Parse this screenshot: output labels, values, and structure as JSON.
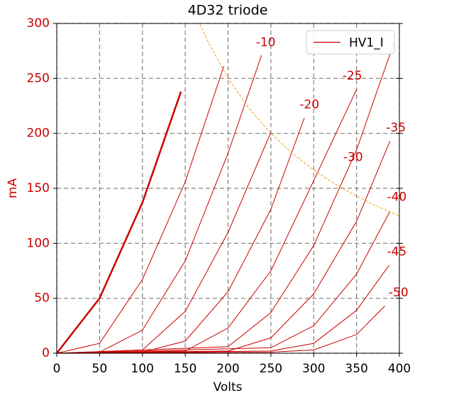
{
  "chart_data": {
    "type": "line",
    "title": "4D32 triode",
    "xlabel": "Volts",
    "ylabel": "mA",
    "xlim": [
      0,
      400
    ],
    "ylim": [
      0,
      300
    ],
    "xticks": [
      0,
      50,
      100,
      150,
      200,
      250,
      300,
      350,
      400
    ],
    "yticks": [
      0,
      50,
      100,
      150,
      200,
      250,
      300
    ],
    "grid": true,
    "ylabel_color": "#cc0000",
    "legend": {
      "label": "HV1_I",
      "color": "#cc0000",
      "location": "upper right"
    },
    "series": [
      {
        "color": "#cc0000",
        "linewidth": 2.5,
        "x": [
          0,
          50,
          100,
          145
        ],
        "values": [
          0,
          50,
          137,
          238
        ]
      },
      {
        "color": "#cc0000",
        "linewidth": 1,
        "x": [
          0,
          50,
          100,
          150,
          195
        ],
        "values": [
          0,
          9,
          67,
          156,
          261
        ]
      },
      {
        "color": "#cc0000",
        "linewidth": 1,
        "x": [
          0,
          50,
          100,
          150,
          200,
          239
        ],
        "values": [
          0,
          1,
          21,
          84,
          182,
          271
        ]
      },
      {
        "color": "#cc0000",
        "linewidth": 1,
        "x": [
          0,
          100,
          150,
          200,
          250
        ],
        "values": [
          0,
          3,
          38,
          110,
          201
        ]
      },
      {
        "color": "#cc0000",
        "linewidth": 1,
        "x": [
          0,
          100,
          150,
          200,
          250,
          289
        ],
        "values": [
          0,
          1,
          11,
          56,
          131,
          214
        ]
      },
      {
        "color": "#cc0000",
        "linewidth": 1,
        "x": [
          0,
          150,
          200,
          250,
          300,
          350
        ],
        "values": [
          0,
          2,
          23,
          75,
          157,
          240
        ]
      },
      {
        "color": "#cc0000",
        "linewidth": 1,
        "x": [
          0,
          200,
          250,
          300,
          350,
          393
        ],
        "values": [
          0,
          6,
          37,
          98,
          185,
          281
        ]
      },
      {
        "color": "#cc0000",
        "linewidth": 1,
        "x": [
          0,
          200,
          250,
          300,
          350,
          389
        ],
        "values": [
          0,
          2,
          14,
          54,
          120,
          193
        ]
      },
      {
        "color": "#cc0000",
        "linewidth": 1,
        "x": [
          0,
          250,
          300,
          350,
          389
        ],
        "values": [
          0,
          5,
          25,
          72,
          129
        ]
      },
      {
        "color": "#cc0000",
        "linewidth": 1,
        "x": [
          0,
          250,
          300,
          350,
          388
        ],
        "values": [
          0,
          2,
          9,
          39,
          80
        ]
      },
      {
        "color": "#cc0000",
        "linewidth": 1,
        "x": [
          0,
          250,
          300,
          350,
          383
        ],
        "values": [
          0,
          1,
          3,
          17,
          43
        ]
      },
      {
        "color": "#f0a020",
        "linewidth": 1,
        "dashed": true,
        "x": [
          167,
          175,
          200,
          225,
          250,
          275,
          300,
          325,
          350,
          375,
          400
        ],
        "values": [
          299.4,
          285.7,
          250,
          222.2,
          200,
          181.8,
          166.7,
          153.8,
          142.9,
          133.3,
          125
        ]
      }
    ],
    "annotations": [
      {
        "text": "-10",
        "x": 244,
        "y": 282.5,
        "color": "#cc0000"
      },
      {
        "text": "-25",
        "x": 345,
        "y": 252,
        "color": "#cc0000"
      },
      {
        "text": "-20",
        "x": 295,
        "y": 226,
        "color": "#cc0000"
      },
      {
        "text": "-35",
        "x": 396,
        "y": 205,
        "color": "#cc0000"
      },
      {
        "text": "-30",
        "x": 346,
        "y": 178,
        "color": "#cc0000"
      },
      {
        "text": "-40",
        "x": 397,
        "y": 142,
        "color": "#cc0000"
      },
      {
        "text": "-45",
        "x": 397,
        "y": 92,
        "color": "#cc0000"
      },
      {
        "text": "-50",
        "x": 399,
        "y": 55,
        "color": "#cc0000"
      }
    ]
  }
}
